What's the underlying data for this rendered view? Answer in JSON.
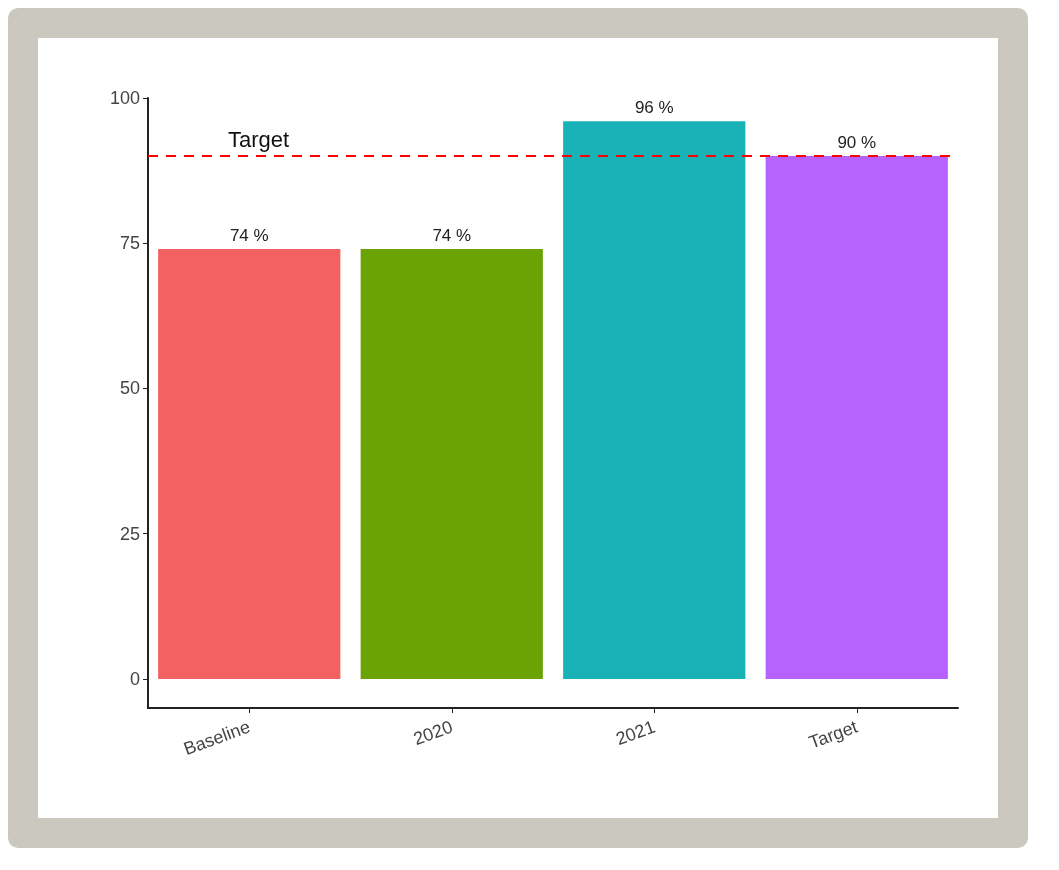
{
  "chart_data": {
    "type": "bar",
    "categories": [
      "Baseline",
      "2020",
      "2021",
      "Target"
    ],
    "values": [
      74,
      74,
      96,
      90
    ],
    "colors": [
      "#f36161",
      "#6ba204",
      "#19b2b6",
      "#b762fe"
    ],
    "value_labels": [
      "74 %",
      "74 %",
      "96 %",
      "90 %"
    ],
    "ylim": [
      -5,
      100
    ],
    "yticks": [
      0,
      25,
      50,
      75,
      100
    ],
    "grid": false,
    "ref_lines": [
      {
        "axis": "y",
        "value": 90,
        "label": "Target",
        "color": "#ff0000",
        "line_style": "dashed"
      }
    ]
  }
}
